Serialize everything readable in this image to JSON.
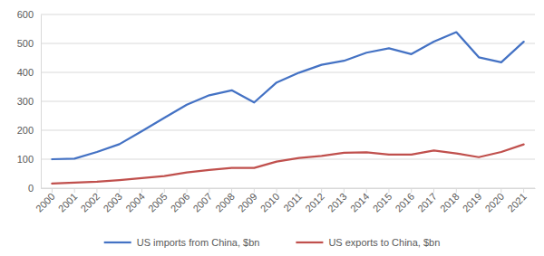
{
  "chart_data": {
    "type": "line",
    "categories": [
      "2000",
      "2001",
      "2002",
      "2003",
      "2004",
      "2005",
      "2006",
      "2007",
      "2008",
      "2009",
      "2010",
      "2011",
      "2012",
      "2013",
      "2014",
      "2015",
      "2016",
      "2017",
      "2018",
      "2019",
      "2020",
      "2021"
    ],
    "series": [
      {
        "name": "US imports from China, $bn",
        "color": "#4472c4",
        "values": [
          100,
          102,
          125,
          152,
          197,
          243,
          288,
          321,
          338,
          296,
          365,
          399,
          426,
          440,
          468,
          483,
          463,
          506,
          539,
          452,
          435,
          506
        ]
      },
      {
        "name": "US exports to China, $bn",
        "color": "#c0504d",
        "values": [
          16,
          19,
          22,
          28,
          35,
          42,
          54,
          63,
          70,
          70,
          92,
          104,
          111,
          122,
          124,
          116,
          116,
          130,
          120,
          107,
          125,
          151
        ]
      }
    ],
    "ylim": [
      0,
      600
    ],
    "yticks": [
      0,
      100,
      200,
      300,
      400,
      500,
      600
    ],
    "grid": true,
    "legend": "bottom"
  }
}
